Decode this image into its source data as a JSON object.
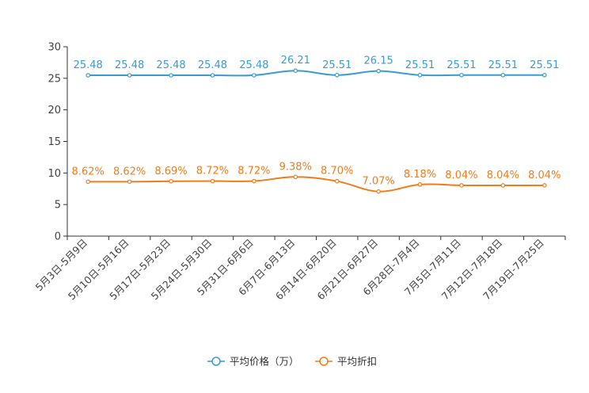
{
  "chart_data": {
    "type": "line",
    "title": "",
    "xlabel": "",
    "ylabel": "",
    "ylim": [
      0,
      30
    ],
    "yticks": [
      0,
      5,
      10,
      15,
      20,
      25,
      30
    ],
    "legend_position": "bottom-center",
    "categories": [
      "5月3日-5月9日",
      "5月10日-5月16日",
      "5月17日-5月23日",
      "5月24日-5月30日",
      "5月31日-6月6日",
      "6月7日-6月13日",
      "6月14日-6月20日",
      "6月21日-6月27日",
      "6月28日-7月4日",
      "7月5日-7月11日",
      "7月12日-7月18日",
      "7月19日-7月25日"
    ],
    "series": [
      {
        "name": "平均价格（万）",
        "color": "#3a9bd0",
        "values": [
          25.48,
          25.48,
          25.48,
          25.48,
          25.48,
          26.21,
          25.51,
          26.15,
          25.51,
          25.51,
          25.51,
          25.51
        ],
        "labels": [
          "25.48",
          "25.48",
          "25.48",
          "25.48",
          "25.48",
          "26.21",
          "25.51",
          "26.15",
          "25.51",
          "25.51",
          "25.51",
          "25.51"
        ]
      },
      {
        "name": "平均折扣",
        "color": "#f07d1a",
        "values": [
          8.62,
          8.62,
          8.69,
          8.72,
          8.72,
          9.38,
          8.7,
          7.07,
          8.18,
          8.04,
          8.04,
          8.04
        ],
        "labels": [
          "8.62%",
          "8.62%",
          "8.69%",
          "8.72%",
          "8.72%",
          "9.38%",
          "8.70%",
          "7.07%",
          "8.18%",
          "8.04%",
          "8.04%",
          "8.04%"
        ]
      }
    ]
  }
}
